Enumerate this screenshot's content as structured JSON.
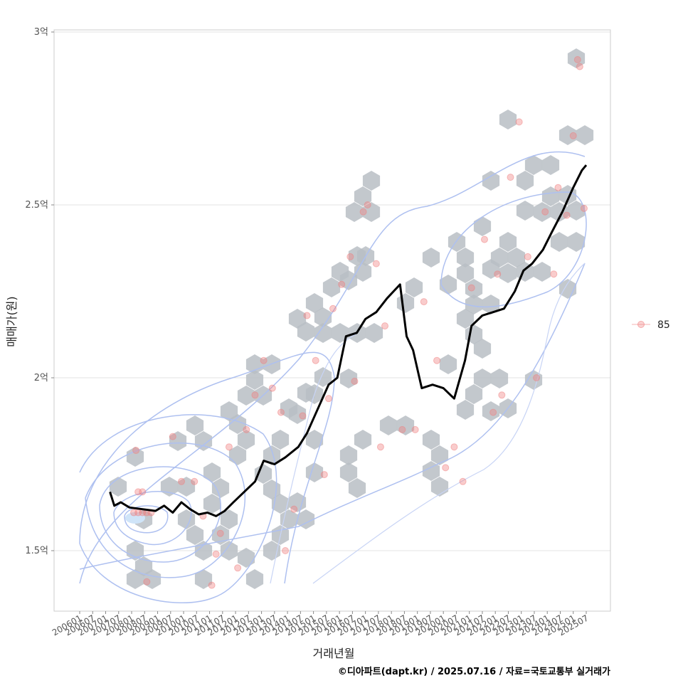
{
  "chart_data": {
    "type": "line",
    "title": "",
    "xlabel": "거래년월",
    "ylabel": "매매가(원)",
    "caption": "©디아파트(dapt.kr) / 2025.07.16 / 자료=국토교통부 실거래가",
    "x_range": [
      "2006-01",
      "2025-12"
    ],
    "ylim": [
      1.33,
      3.0
    ],
    "y_ticks": [
      {
        "value": 1.5,
        "label": "1.5억"
      },
      {
        "value": 2.0,
        "label": "2억"
      },
      {
        "value": 2.5,
        "label": "2.5억"
      },
      {
        "value": 3.0,
        "label": "3억"
      }
    ],
    "x_ticks": [
      "200601",
      "200607",
      "200701",
      "200707",
      "200801",
      "200807",
      "200901",
      "200907",
      "201001",
      "201007",
      "201101",
      "201107",
      "201201",
      "201207",
      "201301",
      "201307",
      "201401",
      "201407",
      "201501",
      "201507",
      "201601",
      "201607",
      "201701",
      "201707",
      "201801",
      "201807",
      "201901",
      "201907",
      "202001",
      "202007",
      "202101",
      "202107",
      "202201",
      "202207",
      "202301",
      "202307",
      "202401",
      "202407",
      "202501",
      "202507"
    ],
    "legend": {
      "label": "85",
      "position": "right",
      "color": "#f08080"
    },
    "colors": {
      "line": "#000000",
      "points": "#f08080",
      "hex": "#b8bec4",
      "contour": "#aec0f0",
      "grid": "#e3e3e3"
    },
    "series": [
      {
        "name": "moving-average",
        "points": [
          [
            "2007-03",
            1.67
          ],
          [
            "2007-05",
            1.63
          ],
          [
            "2007-08",
            1.64
          ],
          [
            "2007-12",
            1.625
          ],
          [
            "2008-06",
            1.62
          ],
          [
            "2008-12",
            1.615
          ],
          [
            "2009-04",
            1.63
          ],
          [
            "2009-08",
            1.61
          ],
          [
            "2009-12",
            1.64
          ],
          [
            "2010-04",
            1.62
          ],
          [
            "2010-08",
            1.605
          ],
          [
            "2010-12",
            1.61
          ],
          [
            "2011-04",
            1.6
          ],
          [
            "2011-08",
            1.615
          ],
          [
            "2011-12",
            1.64
          ],
          [
            "2012-05",
            1.67
          ],
          [
            "2012-10",
            1.7
          ],
          [
            "2013-02",
            1.76
          ],
          [
            "2013-07",
            1.75
          ],
          [
            "2013-12",
            1.77
          ],
          [
            "2014-06",
            1.8
          ],
          [
            "2014-10",
            1.84
          ],
          [
            "2015-03",
            1.91
          ],
          [
            "2015-08",
            1.98
          ],
          [
            "2015-12",
            2.0
          ],
          [
            "2016-04",
            2.12
          ],
          [
            "2016-09",
            2.13
          ],
          [
            "2017-01",
            2.17
          ],
          [
            "2017-06",
            2.19
          ],
          [
            "2017-11",
            2.23
          ],
          [
            "2018-02",
            2.25
          ],
          [
            "2018-05",
            2.27
          ],
          [
            "2018-08",
            2.12
          ],
          [
            "2018-11",
            2.08
          ],
          [
            "2019-03",
            1.97
          ],
          [
            "2019-08",
            1.98
          ],
          [
            "2020-01",
            1.97
          ],
          [
            "2020-06",
            1.94
          ],
          [
            "2020-11",
            2.05
          ],
          [
            "2021-02",
            2.15
          ],
          [
            "2021-07",
            2.18
          ],
          [
            "2021-12",
            2.19
          ],
          [
            "2022-05",
            2.2
          ],
          [
            "2022-10",
            2.25
          ],
          [
            "2023-02",
            2.31
          ],
          [
            "2023-06",
            2.33
          ],
          [
            "2023-11",
            2.37
          ],
          [
            "2024-03",
            2.42
          ],
          [
            "2024-08",
            2.48
          ],
          [
            "2025-01",
            2.55
          ],
          [
            "2025-05",
            2.6
          ],
          [
            "2025-07",
            2.615
          ]
        ]
      },
      {
        "name": "85",
        "points": [
          [
            "2008-02",
            1.61
          ],
          [
            "2008-04",
            1.61
          ],
          [
            "2008-06",
            1.61
          ],
          [
            "2008-08",
            1.61
          ],
          [
            "2008-10",
            1.61
          ],
          [
            "2008-04",
            1.67
          ],
          [
            "2008-06",
            1.67
          ],
          [
            "2008-03",
            1.79
          ],
          [
            "2008-08",
            1.41
          ],
          [
            "2009-08",
            1.83
          ],
          [
            "2009-12",
            1.7
          ],
          [
            "2010-06",
            1.7
          ],
          [
            "2010-10",
            1.6
          ],
          [
            "2011-02",
            1.4
          ],
          [
            "2011-04",
            1.49
          ],
          [
            "2011-06",
            1.55
          ],
          [
            "2011-10",
            1.8
          ],
          [
            "2012-02",
            1.45
          ],
          [
            "2012-06",
            1.85
          ],
          [
            "2012-10",
            1.95
          ],
          [
            "2013-02",
            2.05
          ],
          [
            "2013-06",
            1.97
          ],
          [
            "2013-10",
            1.9
          ],
          [
            "2013-12",
            1.5
          ],
          [
            "2014-04",
            1.62
          ],
          [
            "2014-08",
            1.89
          ],
          [
            "2014-10",
            2.18
          ],
          [
            "2015-02",
            2.05
          ],
          [
            "2015-06",
            1.72
          ],
          [
            "2015-08",
            1.94
          ],
          [
            "2015-10",
            2.2
          ],
          [
            "2016-02",
            2.27
          ],
          [
            "2016-06",
            2.35
          ],
          [
            "2016-08",
            1.99
          ],
          [
            "2016-12",
            2.48
          ],
          [
            "2017-02",
            2.5
          ],
          [
            "2017-06",
            2.33
          ],
          [
            "2017-10",
            2.15
          ],
          [
            "2017-08",
            1.8
          ],
          [
            "2018-06",
            1.85
          ],
          [
            "2018-12",
            1.85
          ],
          [
            "2019-04",
            2.22
          ],
          [
            "2019-10",
            2.05
          ],
          [
            "2020-02",
            1.74
          ],
          [
            "2020-06",
            1.8
          ],
          [
            "2020-10",
            1.7
          ],
          [
            "2021-02",
            2.26
          ],
          [
            "2021-08",
            2.4
          ],
          [
            "2021-12",
            1.9
          ],
          [
            "2022-02",
            2.3
          ],
          [
            "2022-04",
            1.95
          ],
          [
            "2022-08",
            2.58
          ],
          [
            "2022-12",
            2.74
          ],
          [
            "2023-04",
            2.35
          ],
          [
            "2023-08",
            2.0
          ],
          [
            "2023-12",
            2.48
          ],
          [
            "2024-04",
            2.3
          ],
          [
            "2024-06",
            2.55
          ],
          [
            "2024-10",
            2.47
          ],
          [
            "2025-01",
            2.7
          ],
          [
            "2025-03",
            2.92
          ],
          [
            "2025-04",
            2.9
          ],
          [
            "2025-06",
            2.49
          ]
        ]
      }
    ]
  }
}
